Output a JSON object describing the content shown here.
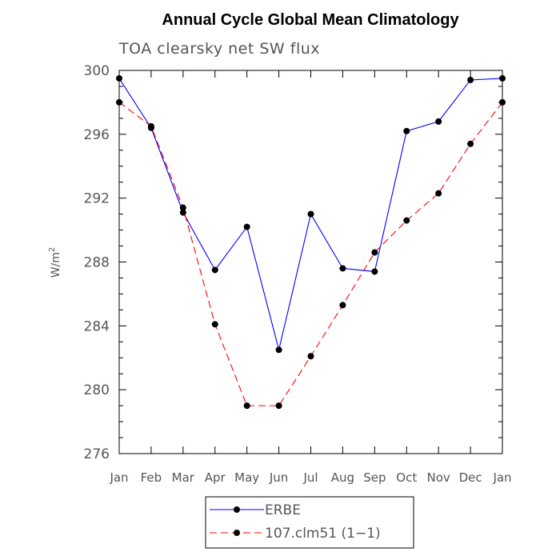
{
  "chart_data": {
    "type": "line",
    "title": "Annual Cycle Global Mean Climatology",
    "subtitle": "TOA clearsky net SW flux",
    "xlabel": "",
    "ylabel": "W/m",
    "ylabel_superscript": "2",
    "categories": [
      "Jan",
      "Feb",
      "Mar",
      "Apr",
      "May",
      "Jun",
      "Jul",
      "Aug",
      "Sep",
      "Oct",
      "Nov",
      "Dec",
      "Jan"
    ],
    "ylim": [
      276,
      300
    ],
    "yticks": [
      "276",
      "280",
      "284",
      "288",
      "292",
      "296",
      "300"
    ],
    "grid": false,
    "legend_position": "bottom-center",
    "series": [
      {
        "name": "ERBE",
        "color": "#0000ff",
        "dash": "solid",
        "values": [
          299.5,
          296.4,
          291.1,
          287.5,
          290.2,
          282.5,
          291.0,
          287.6,
          287.4,
          296.2,
          296.8,
          299.4,
          299.5
        ]
      },
      {
        "name": "107.clm51 (1−1)",
        "color": "#ff0000",
        "dash": "dashed",
        "values": [
          298.0,
          296.5,
          291.4,
          284.1,
          279.0,
          279.0,
          282.1,
          285.3,
          288.6,
          290.6,
          292.3,
          295.4,
          298.0
        ]
      }
    ]
  }
}
